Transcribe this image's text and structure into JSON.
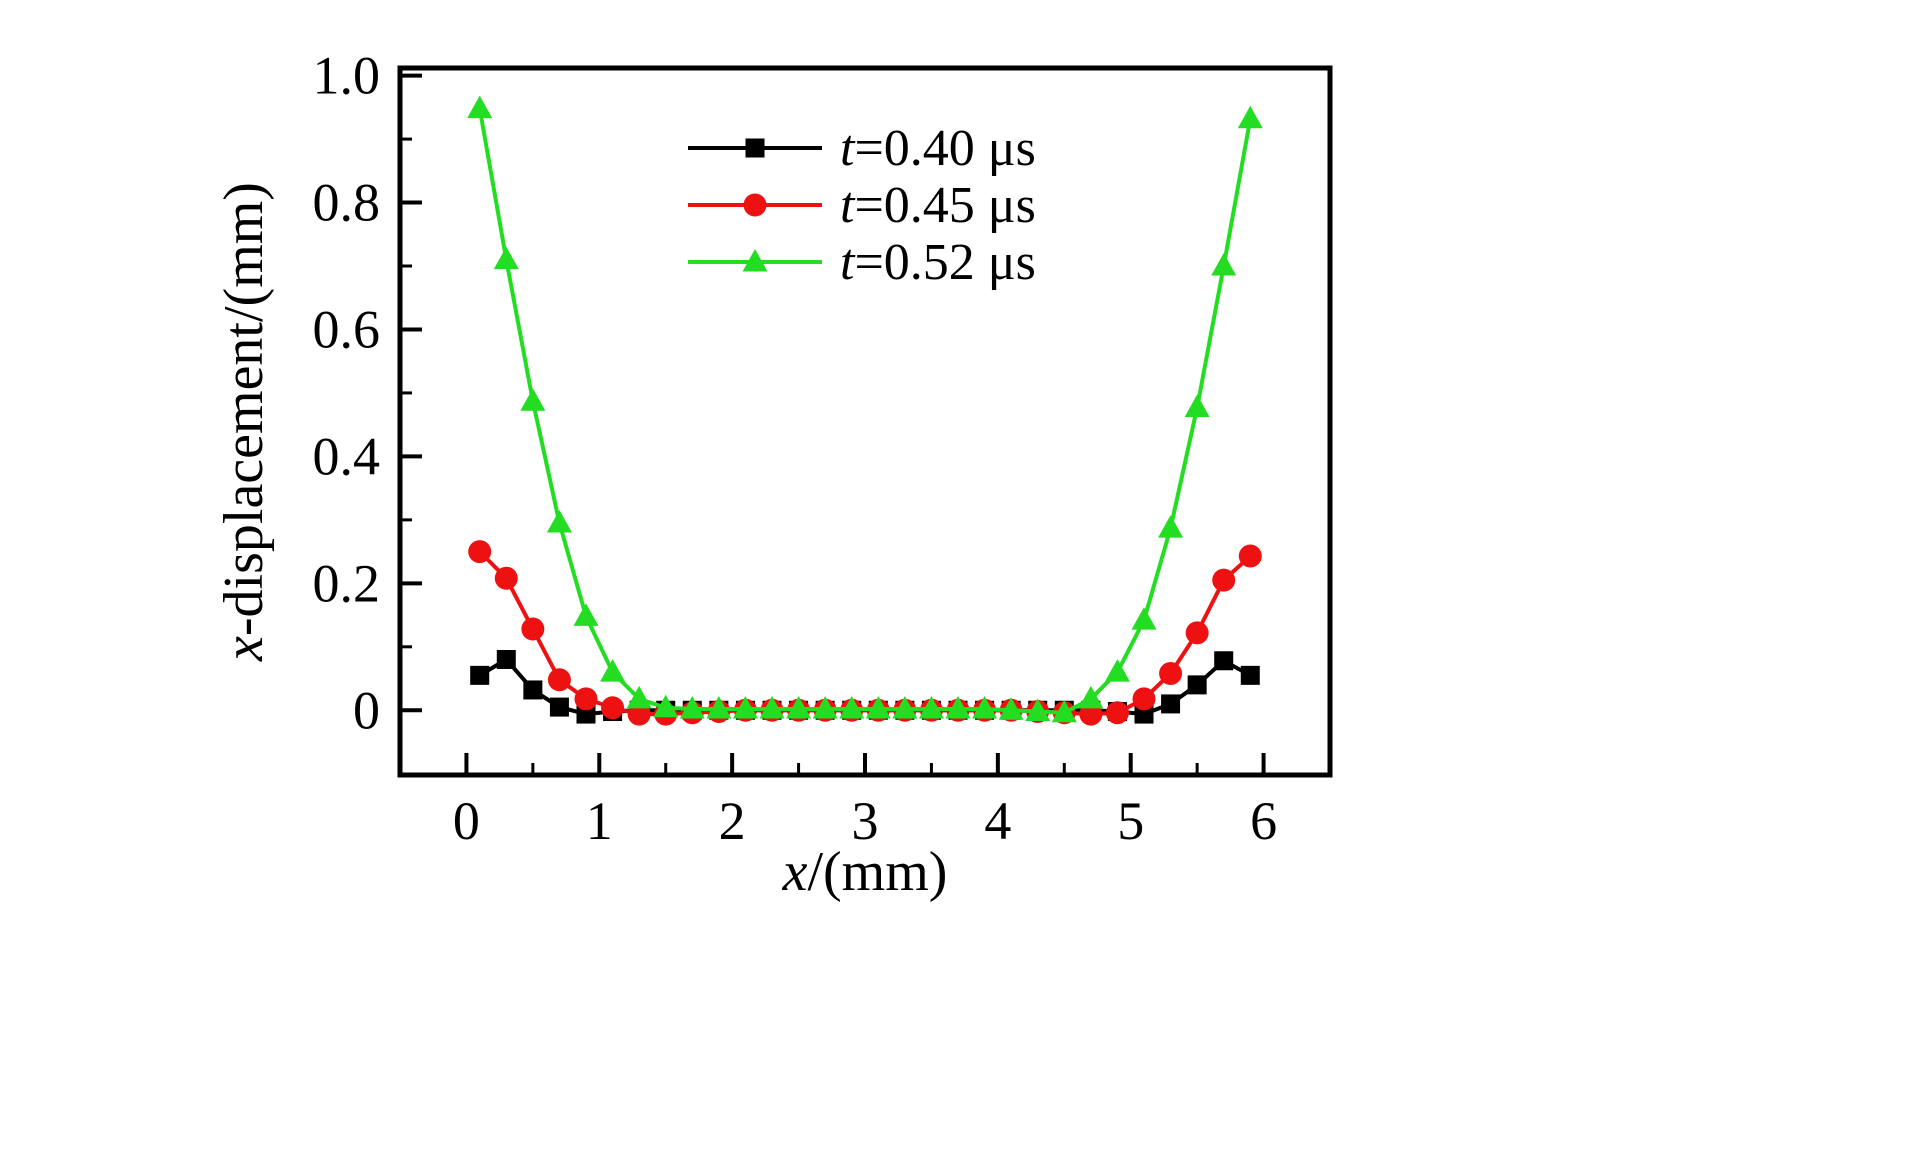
{
  "figure": {
    "background": "#ffffff",
    "frame_color": "#000000"
  },
  "chart_data": {
    "type": "line",
    "title": "",
    "xlabel_italic": "x",
    "xlabel_rest": "/(mm)",
    "ylabel_italic": "x",
    "ylabel_rest": "-displacement/(mm)",
    "xlim": [
      -0.5,
      6.5
    ],
    "ylim": [
      -0.102,
      1.012
    ],
    "x_major_ticks": [
      0,
      1,
      2,
      3,
      4,
      5,
      6
    ],
    "x_tick_labels": [
      "0",
      "1",
      "2",
      "3",
      "4",
      "5",
      "6"
    ],
    "x_minor_step": 0.5,
    "y_major_ticks": [
      0.0,
      0.2,
      0.4,
      0.6,
      0.8,
      1.0
    ],
    "y_tick_labels": [
      "0",
      "0.2",
      "0.4",
      "0.6",
      "0.8",
      "1.0"
    ],
    "y_minor_step": 0.1,
    "grid": false,
    "legend_position": "top-center",
    "x": [
      0.1,
      0.3,
      0.5,
      0.7,
      0.9,
      1.1,
      1.3,
      1.5,
      1.7,
      1.9,
      2.1,
      2.3,
      2.5,
      2.7,
      2.9,
      3.1,
      3.3,
      3.5,
      3.7,
      3.9,
      4.1,
      4.3,
      4.5,
      4.7,
      4.9,
      5.1,
      5.3,
      5.5,
      5.7,
      5.9
    ],
    "series": [
      {
        "name_italic": "t",
        "name_rest": "=0.40 μs",
        "color": "#000000",
        "marker": "square",
        "values": [
          0.055,
          0.08,
          0.032,
          0.005,
          -0.006,
          -0.002,
          0.0,
          0.0,
          0.0,
          0.0,
          0.0,
          0.0,
          0.0,
          0.0,
          0.0,
          0.0,
          0.0,
          0.0,
          0.0,
          0.0,
          0.0,
          0.0,
          0.0,
          0.0,
          -0.002,
          -0.006,
          0.01,
          0.04,
          0.078,
          0.055
        ]
      },
      {
        "name_italic": "t",
        "name_rest": "=0.45 μs",
        "color": "#ee1111",
        "marker": "circle",
        "values": [
          0.25,
          0.208,
          0.128,
          0.048,
          0.018,
          0.004,
          -0.006,
          -0.006,
          -0.004,
          -0.002,
          0.0,
          0.0,
          0.0,
          0.0,
          0.0,
          0.0,
          0.0,
          0.0,
          0.0,
          0.0,
          0.0,
          -0.002,
          -0.004,
          -0.006,
          -0.004,
          0.018,
          0.058,
          0.122,
          0.205,
          0.243
        ]
      },
      {
        "name_italic": "t",
        "name_rest": "=0.52 μs",
        "color": "#22dd22",
        "marker": "triangle",
        "values": [
          0.948,
          0.71,
          0.487,
          0.295,
          0.148,
          0.06,
          0.018,
          0.004,
          0.002,
          0.002,
          0.002,
          0.002,
          0.002,
          0.002,
          0.002,
          0.002,
          0.002,
          0.002,
          0.002,
          0.002,
          0.0,
          -0.002,
          -0.004,
          0.018,
          0.06,
          0.142,
          0.287,
          0.477,
          0.7,
          0.932
        ]
      }
    ]
  }
}
